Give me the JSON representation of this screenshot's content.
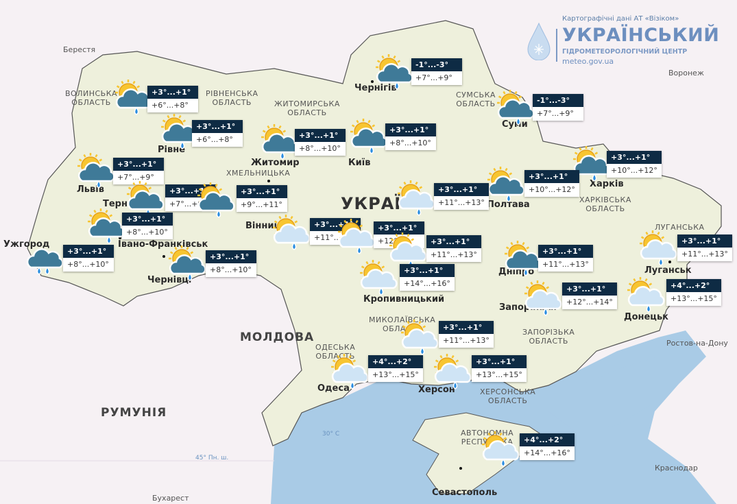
{
  "branding": {
    "source": "Картографічні дані АТ «Візіком»",
    "name": "УКРАЇНСЬКИЙ",
    "subtitle": "ГІДРОМЕТЕОРОЛОГІЧНИЙ ЦЕНТР",
    "url": "meteo.gov.ua"
  },
  "colors": {
    "ukraine_land": "#eef0dc",
    "neighbor_land": "#f6f1f4",
    "sea": "#a9cbe6",
    "label_night_bg": "#0e2b44",
    "label_day_bg": "#ffffff",
    "sun": "#f7c531",
    "cloud_dark": "#3f7a98",
    "cloud_light": "#cfe4f5",
    "drop": "#2a8de0"
  },
  "countries": [
    "УКРАЇНА",
    "МОЛДОВА",
    "РУМУНІЯ"
  ],
  "foreign_cities": [
    "Берестя",
    "Воронеж",
    "Ростов-на-Дону",
    "Краснодар",
    "Бухарест"
  ],
  "gridlines": [
    "45° Пн. ш.",
    "30° С"
  ],
  "regions": [
    "ВОЛИНСЬКА ОБЛАСТЬ",
    "РІВНЕНСЬКА ОБЛАСТЬ",
    "ЖИТОМИРСЬКА ОБЛАСТЬ",
    "ХМЕЛЬНИЦЬКА",
    "СУМСЬКА ОБЛАСТЬ",
    "ХАРКІВСЬКА ОБЛАСТЬ",
    "ЛУГАНСЬКА",
    "МИКОЛАЇВСЬКА ОБЛАСТЬ",
    "ОДЕСЬКА ОБЛАСТЬ",
    "ЗАПОРІЗЬКА ОБЛАСТЬ",
    "ХЕРСОНСЬКА ОБЛАСТЬ",
    "АВТОНОМНА РЕСПУБЛІКА"
  ],
  "cities": [
    "Чернігів",
    "Суми",
    "Київ",
    "Житомир",
    "Рівне",
    "Львів",
    "Тернопіль",
    "Вінниця",
    "Івано-Франківськ",
    "Ужгород",
    "Чернівці",
    "Полтава",
    "Харків",
    "Дніпро",
    "Запоріжжя",
    "Донецьк",
    "Луганськ",
    "Одеса",
    "Херсон",
    "Севастополь",
    "Кропивницький"
  ],
  "forecasts": [
    {
      "icon": "partly-cloudy-rain-dark",
      "night": "+3°...+1°",
      "day": "+6°...+8°"
    },
    {
      "icon": "partly-cloudy-rain-dark",
      "night": "+3°...+1°",
      "day": "+6°...+8°"
    },
    {
      "icon": "partly-cloudy-rain-dark",
      "night": "+3°...+1°",
      "day": "+8°...+10°"
    },
    {
      "icon": "partly-cloudy-rain-dark",
      "night": "+3°...+1°",
      "day": "+8°...+10°"
    },
    {
      "icon": "partly-cloudy-rain-dark",
      "night": "-1°...-3°",
      "day": "+7°...+9°"
    },
    {
      "icon": "partly-cloudy-rain-dark",
      "night": "-1°...-3°",
      "day": "+7°...+9°"
    },
    {
      "icon": "partly-cloudy-rain-dark",
      "night": "+3°...+1°",
      "day": "+10°...+12°"
    },
    {
      "icon": "partly-cloudy-rain-dark",
      "night": "+3°...+1°",
      "day": "+10°...+12°"
    },
    {
      "icon": "partly-cloudy-rain-dark",
      "night": "+3°...+1°",
      "day": "+7°...+9°"
    },
    {
      "icon": "partly-cloudy-rain-dark",
      "night": "+3°...+1°",
      "day": "+7°...+9°"
    },
    {
      "icon": "partly-cloudy-rain-dark",
      "night": "+3°...+1°",
      "day": "+9°...+11°"
    },
    {
      "icon": "partly-cloudy-rain-dark",
      "night": "+3°...+1°",
      "day": "+8°...+10°"
    },
    {
      "icon": "rain",
      "night": "+3°...+1°",
      "day": "+8°...+10°"
    },
    {
      "icon": "partly-cloudy-rain-dark",
      "night": "+3°...+1°",
      "day": "+8°...+10°"
    },
    {
      "icon": "partly-cloudy-rain-light",
      "night": "+3°...+1°",
      "day": "+11°..."
    },
    {
      "icon": "partly-cloudy-rain-light",
      "night": "+3°...+1°",
      "day": "+12°"
    },
    {
      "icon": "partly-cloudy-rain-light",
      "night": "+3°...+1°",
      "day": "+11°...+13°"
    },
    {
      "icon": "partly-cloudy-rain-light",
      "night": "+3°...+1°",
      "day": "+14°...+16°"
    },
    {
      "icon": "partly-cloudy-rain-light",
      "night": "+3°...+1°",
      "day": "+11°...+13°"
    },
    {
      "icon": "partly-cloudy-rain-dark",
      "night": "+3°...+1°",
      "day": "+11°...+13°"
    },
    {
      "icon": "partly-cloudy-rain-light",
      "night": "+3°...+1°",
      "day": "+12°...+14°"
    },
    {
      "icon": "partly-cloudy-rain-light",
      "night": "+4°...+2°",
      "day": "+13°...+15°"
    },
    {
      "icon": "partly-cloudy-rain-light",
      "night": "+3°...+1°",
      "day": "+11°...+13°"
    },
    {
      "icon": "partly-cloudy-rain-light",
      "night": "+3°...+1°",
      "day": "+11°...+13°"
    },
    {
      "icon": "partly-cloudy-rain-light",
      "night": "+4°...+2°",
      "day": "+13°...+15°"
    },
    {
      "icon": "partly-cloudy-rain-light",
      "night": "+3°...+1°",
      "day": "+13°...+15°"
    },
    {
      "icon": "partly-cloudy-rain-light",
      "night": "+4°...+2°",
      "day": "+14°...+16°"
    }
  ]
}
